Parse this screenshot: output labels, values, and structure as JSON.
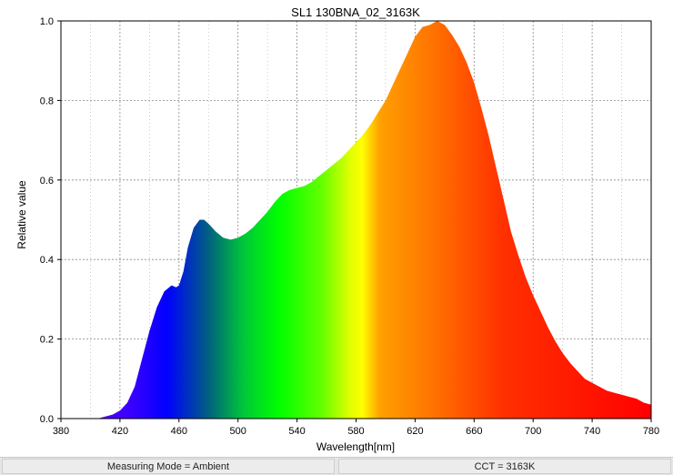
{
  "chart_data": {
    "type": "area",
    "title": "SL1 130BNA_02_3163K",
    "xlabel": "Wavelength[nm]",
    "ylabel": "Relative value",
    "xlim": [
      380,
      780
    ],
    "ylim": [
      0,
      1.0
    ],
    "x_ticks": [
      380,
      420,
      460,
      500,
      540,
      580,
      620,
      660,
      700,
      740,
      780
    ],
    "y_ticks": [
      0.0,
      0.2,
      0.4,
      0.6,
      0.8,
      1.0
    ],
    "y_tick_labels": [
      "0.0",
      "0.2",
      "0.4",
      "0.6",
      "0.8",
      "1.0"
    ],
    "grid": true,
    "fill": "visible-spectrum-gradient",
    "x": [
      405,
      410,
      415,
      420,
      425,
      430,
      435,
      440,
      445,
      450,
      455,
      458,
      460,
      463,
      466,
      470,
      474,
      477,
      480,
      485,
      490,
      495,
      500,
      505,
      510,
      515,
      520,
      525,
      530,
      535,
      540,
      545,
      550,
      555,
      560,
      565,
      570,
      575,
      580,
      585,
      590,
      595,
      600,
      605,
      610,
      615,
      620,
      625,
      630,
      635,
      640,
      645,
      650,
      655,
      660,
      665,
      670,
      675,
      680,
      685,
      690,
      695,
      700,
      705,
      710,
      715,
      720,
      725,
      730,
      735,
      740,
      745,
      750,
      755,
      760,
      765,
      770,
      775,
      780
    ],
    "y": [
      0.0,
      0.005,
      0.01,
      0.02,
      0.04,
      0.08,
      0.15,
      0.22,
      0.28,
      0.32,
      0.335,
      0.33,
      0.335,
      0.37,
      0.43,
      0.48,
      0.5,
      0.5,
      0.49,
      0.47,
      0.455,
      0.45,
      0.455,
      0.465,
      0.48,
      0.5,
      0.52,
      0.545,
      0.565,
      0.575,
      0.58,
      0.585,
      0.595,
      0.61,
      0.625,
      0.64,
      0.655,
      0.675,
      0.695,
      0.715,
      0.74,
      0.77,
      0.8,
      0.84,
      0.88,
      0.92,
      0.96,
      0.985,
      0.99,
      1.0,
      0.99,
      0.965,
      0.935,
      0.895,
      0.845,
      0.78,
      0.71,
      0.63,
      0.55,
      0.47,
      0.41,
      0.355,
      0.31,
      0.27,
      0.23,
      0.195,
      0.165,
      0.14,
      0.12,
      0.1,
      0.09,
      0.08,
      0.07,
      0.065,
      0.06,
      0.055,
      0.05,
      0.04,
      0.035
    ]
  },
  "status": {
    "measuring_mode": "Measuring Mode = Ambient",
    "cct": "CCT = 3163K"
  }
}
